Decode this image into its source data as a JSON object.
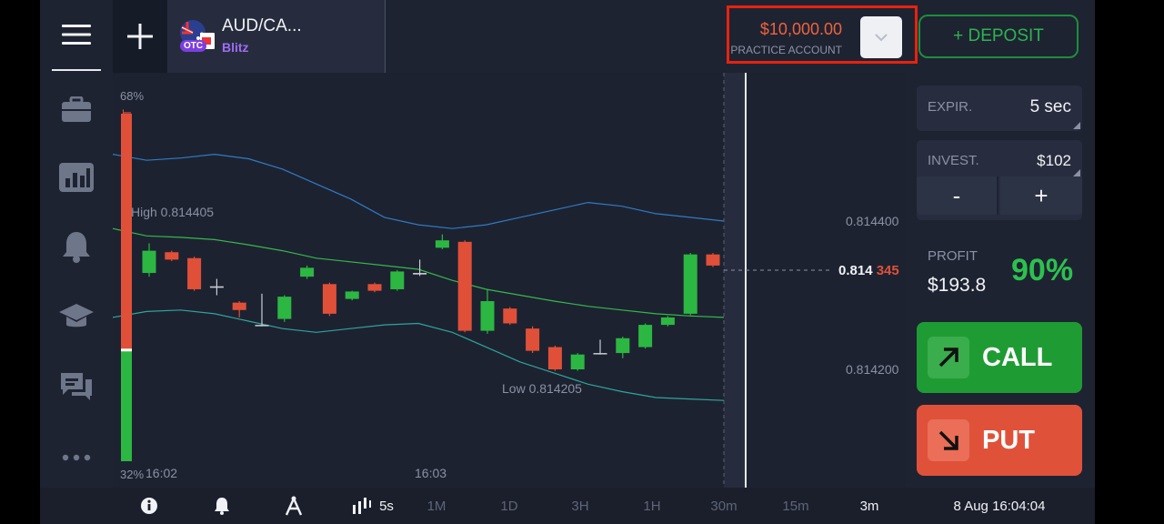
{
  "topbar": {
    "asset_name": "AUD/CA...",
    "asset_type": "Blitz",
    "asset_badge": "OTC",
    "balance": "$10,000.00",
    "account_type": "PRACTICE ACCOUNT",
    "deposit_label": "+ DEPOSIT"
  },
  "sidebar": {
    "icons": [
      "menu-icon",
      "briefcase-icon",
      "chart-icon",
      "bell-icon",
      "graduation-cap-icon",
      "chat-icon",
      "more-icon"
    ]
  },
  "chart": {
    "put_label": "PUT",
    "call_label": "CALL",
    "put_pct": "68%",
    "call_pct": "32%",
    "sentiment_put_fraction": 0.68,
    "high_label": "High 0.814405",
    "low_label": "Low 0.814205",
    "price_ticks": [
      "0.814400",
      "0.814200"
    ],
    "current_price_main": "0.814",
    "current_price_tail": "345",
    "time_ticks": [
      "16:02",
      "16:03"
    ],
    "candles": [
      {
        "o": 0.81433,
        "c": 0.81436,
        "h": 0.81437,
        "l": 0.814325,
        "d": "up"
      },
      {
        "o": 0.814358,
        "c": 0.814348,
        "h": 0.81436,
        "l": 0.814346,
        "d": "down"
      },
      {
        "o": 0.81435,
        "c": 0.814308,
        "h": 0.814352,
        "l": 0.814306,
        "d": "down"
      },
      {
        "o": 0.81431,
        "c": 0.814312,
        "h": 0.814322,
        "l": 0.8143,
        "d": "doji"
      },
      {
        "o": 0.81429,
        "c": 0.81428,
        "h": 0.814292,
        "l": 0.81427,
        "d": "down"
      },
      {
        "o": 0.81426,
        "c": 0.81426,
        "h": 0.814302,
        "l": 0.814258,
        "d": "doji"
      },
      {
        "o": 0.814268,
        "c": 0.814298,
        "h": 0.8143,
        "l": 0.814264,
        "d": "up"
      },
      {
        "o": 0.814325,
        "c": 0.814337,
        "h": 0.81434,
        "l": 0.814322,
        "d": "up"
      },
      {
        "o": 0.814315,
        "c": 0.814275,
        "h": 0.814317,
        "l": 0.814272,
        "d": "down"
      },
      {
        "o": 0.814295,
        "c": 0.814305,
        "h": 0.814306,
        "l": 0.814293,
        "d": "up"
      },
      {
        "o": 0.814315,
        "c": 0.814306,
        "h": 0.814317,
        "l": 0.814304,
        "d": "down"
      },
      {
        "o": 0.814308,
        "c": 0.814332,
        "h": 0.814334,
        "l": 0.814306,
        "d": "up"
      },
      {
        "o": 0.814328,
        "c": 0.81433,
        "h": 0.814348,
        "l": 0.814326,
        "d": "doji"
      },
      {
        "o": 0.814364,
        "c": 0.814374,
        "h": 0.814382,
        "l": 0.814362,
        "d": "up"
      },
      {
        "o": 0.814372,
        "c": 0.814252,
        "h": 0.814374,
        "l": 0.81425,
        "d": "down"
      },
      {
        "o": 0.814252,
        "c": 0.814292,
        "h": 0.814308,
        "l": 0.814248,
        "d": "up"
      },
      {
        "o": 0.814282,
        "c": 0.814262,
        "h": 0.814284,
        "l": 0.81426,
        "d": "down"
      },
      {
        "o": 0.814255,
        "c": 0.814225,
        "h": 0.814258,
        "l": 0.814222,
        "d": "down"
      },
      {
        "o": 0.81423,
        "c": 0.8142,
        "h": 0.814232,
        "l": 0.814198,
        "d": "down"
      },
      {
        "o": 0.8142,
        "c": 0.81422,
        "h": 0.814222,
        "l": 0.814198,
        "d": "up"
      },
      {
        "o": 0.814222,
        "c": 0.814222,
        "h": 0.81424,
        "l": 0.81422,
        "d": "doji"
      },
      {
        "o": 0.814222,
        "c": 0.814242,
        "h": 0.814244,
        "l": 0.814215,
        "d": "up"
      },
      {
        "o": 0.81423,
        "c": 0.81426,
        "h": 0.814262,
        "l": 0.814228,
        "d": "up"
      },
      {
        "o": 0.81426,
        "c": 0.81427,
        "h": 0.814272,
        "l": 0.814258,
        "d": "up"
      },
      {
        "o": 0.814275,
        "c": 0.814355,
        "h": 0.814357,
        "l": 0.814273,
        "d": "up"
      },
      {
        "o": 0.814355,
        "c": 0.81434,
        "h": 0.814357,
        "l": 0.814338,
        "d": "down"
      }
    ],
    "bands": {
      "upper": [
        0.81449,
        0.814482,
        0.814485,
        0.81449,
        0.814484,
        0.81447,
        0.81445,
        0.81443,
        0.814405,
        0.814395,
        0.81439,
        0.814395,
        0.814405,
        0.814415,
        0.814425,
        0.81442,
        0.81441,
        0.814405,
        0.8144
      ],
      "middle": [
        0.81439,
        0.81438,
        0.814378,
        0.814375,
        0.814368,
        0.81436,
        0.81435,
        0.814345,
        0.81434,
        0.814335,
        0.81432,
        0.814308,
        0.8143,
        0.814292,
        0.814285,
        0.81428,
        0.814275,
        0.814272,
        0.81427
      ],
      "lower": [
        0.81427,
        0.814278,
        0.81428,
        0.814275,
        0.814265,
        0.814255,
        0.81425,
        0.814255,
        0.81426,
        0.814262,
        0.81425,
        0.81423,
        0.81421,
        0.814195,
        0.81418,
        0.81417,
        0.814162,
        0.81416,
        0.814158
      ]
    }
  },
  "panel": {
    "expiry_label": "EXPIR.",
    "expiry_value": "5 sec",
    "invest_label": "INVEST.",
    "invest_value": "$102",
    "minus_label": "-",
    "plus_label": "+",
    "profit_label": "PROFIT",
    "profit_value": "$193.8",
    "profit_percent": "90%",
    "call_label": "CALL",
    "put_label": "PUT"
  },
  "bottombar": {
    "timeframes": [
      "5s",
      "1M",
      "1D",
      "3H",
      "1H",
      "30m",
      "15m",
      "3m"
    ],
    "active_timeframe": "5s",
    "datetime": "8 Aug 16:04:04"
  },
  "colors": {
    "up": "#2cb742",
    "down": "#e05038",
    "accent_red": "#e8220e",
    "bands_upper": "#2f7cc4",
    "bands_middle": "#36b84a",
    "bands_lower": "#2fa59a"
  }
}
